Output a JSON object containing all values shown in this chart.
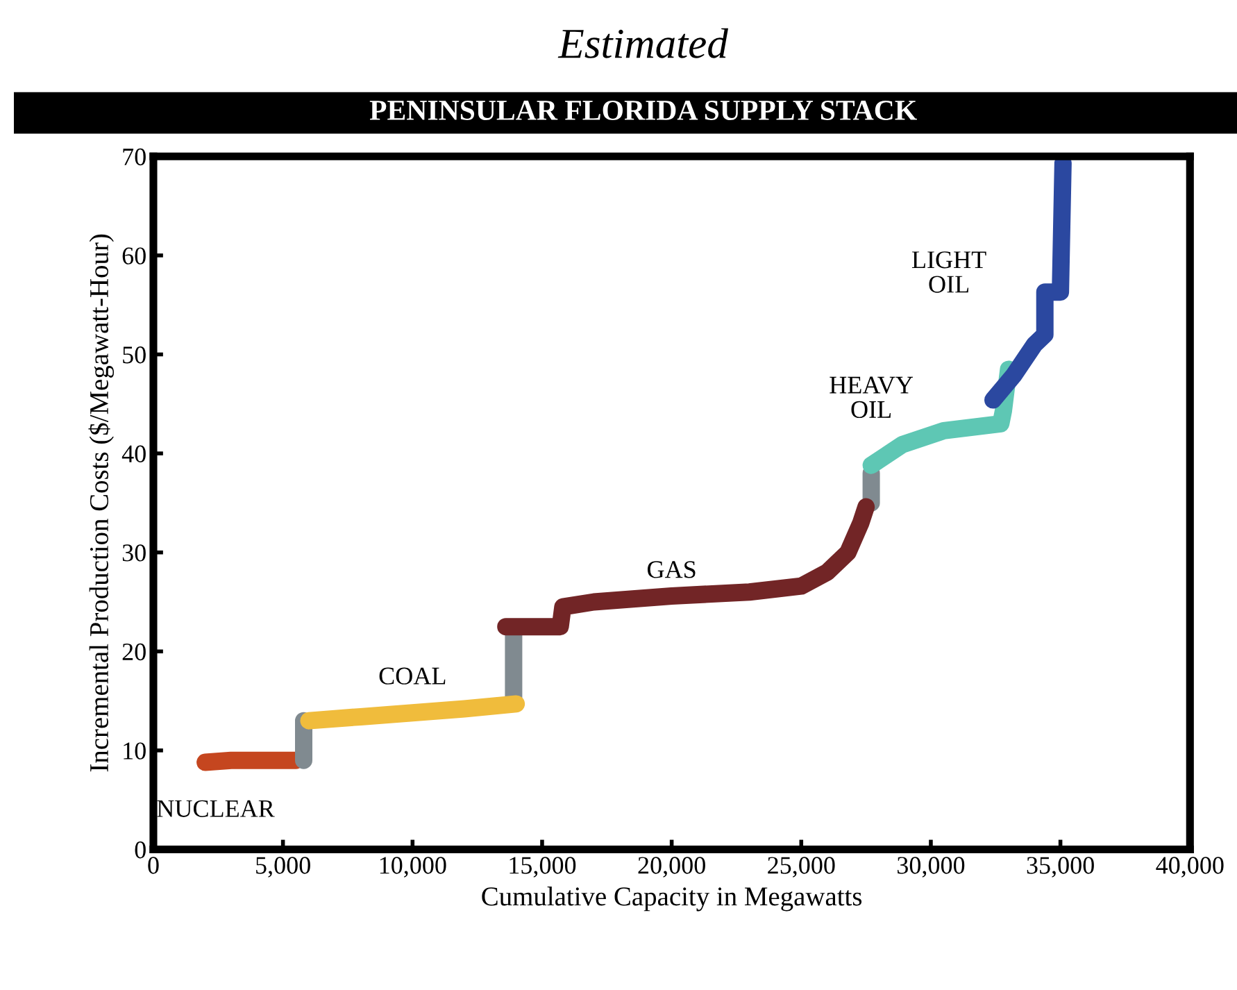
{
  "chart_data": {
    "type": "line",
    "title": "PENINSULAR FLORIDA SUPPLY STACK",
    "subtitle": "Estimated",
    "xlabel": "Cumulative Capacity in Megawatts",
    "ylabel": "Incremental Production Costs ($/Megawatt-Hour)",
    "xlim": [
      0,
      40000
    ],
    "ylim": [
      0,
      70
    ],
    "xticks": [
      0,
      {
        "value": 5000,
        "label": "5,000"
      },
      {
        "value": 10000,
        "label": "10,000"
      },
      {
        "value": 15000,
        "label": "15,000"
      },
      {
        "value": 20000,
        "label": "20,000"
      },
      {
        "value": 25000,
        "label": "25,000"
      },
      {
        "value": 30000,
        "label": "30,000"
      },
      {
        "value": 35000,
        "label": "35,000"
      },
      {
        "value": 40000,
        "label": "40,000"
      }
    ],
    "yticks": [
      0,
      10,
      20,
      30,
      40,
      50,
      60,
      70
    ],
    "grid": false,
    "legend": false,
    "line_style": "solid",
    "series": [
      {
        "name": "NUCLEAR",
        "color": "#c5461f",
        "x": [
          2000,
          3000,
          4500,
          5500
        ],
        "values": [
          8.8,
          9.0,
          9.0,
          9.0
        ]
      },
      {
        "color": "#808a90",
        "x": [
          5800,
          5800,
          5900,
          13900,
          13900,
          14000,
          27700,
          27700
        ],
        "values": [
          9,
          13,
          null,
          15,
          22,
          null,
          35,
          38
        ]
      },
      {
        "name": "COAL",
        "color": "#f0bc3c",
        "x": [
          6000,
          8000,
          10000,
          12000,
          14000
        ],
        "values": [
          13.0,
          13.4,
          13.8,
          14.2,
          14.7
        ]
      },
      {
        "name": "GAS",
        "color": "#722526",
        "x": [
          13600,
          15700,
          15800,
          17000,
          20000,
          23000,
          25000,
          26000,
          26800,
          27300,
          27500
        ],
        "values": [
          22.5,
          22.5,
          24.5,
          25.0,
          25.6,
          26.0,
          26.6,
          28.0,
          30.0,
          33.0,
          34.6
        ]
      },
      {
        "name": "HEAVY OIL",
        "color": "#5ec7b4",
        "x": [
          27700,
          28900,
          30500,
          32700,
          32800,
          33000
        ],
        "values": [
          38.8,
          40.9,
          42.3,
          43.0,
          44.3,
          48.5
        ]
      },
      {
        "name": "LIGHT OIL",
        "color": "#2b48a0",
        "x": [
          32400,
          33200,
          34000,
          34400,
          34400,
          35000,
          35100
        ],
        "values": [
          45.4,
          47.9,
          51.0,
          52.0,
          56.3,
          56.3,
          69.3
        ]
      }
    ]
  }
}
